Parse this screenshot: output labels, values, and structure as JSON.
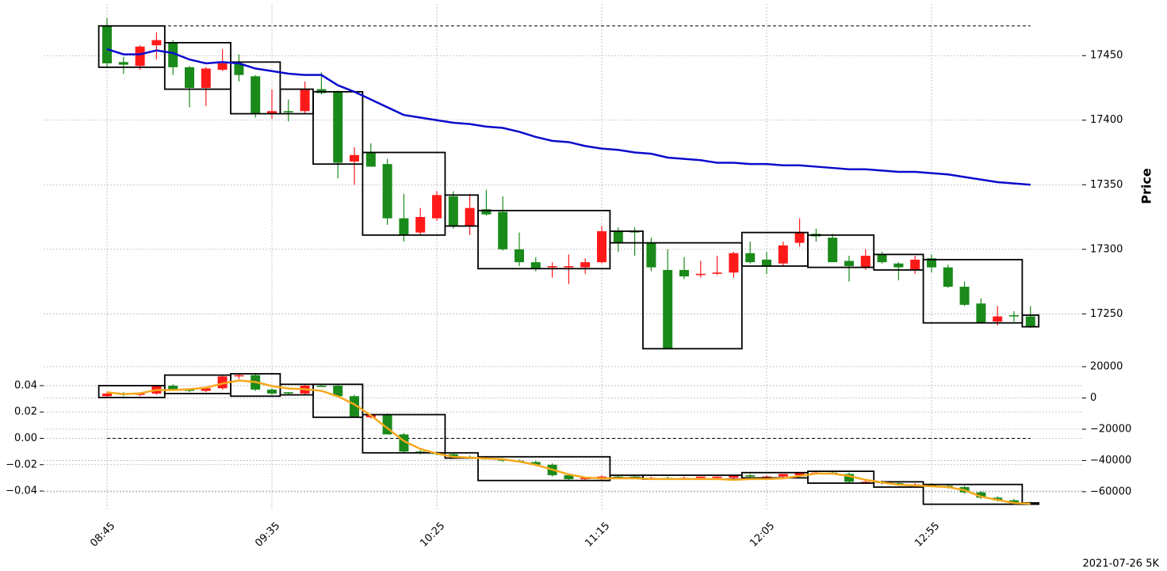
{
  "chart_data": [
    {
      "type": "candlestick",
      "ylabel": "Price",
      "grid": true,
      "up_color": "#ff1a1a",
      "down_color": "#1a8a1a",
      "ylim": [
        17214,
        17490
      ],
      "yticks": [
        17250,
        17300,
        17350,
        17400,
        17450
      ],
      "hline": 17473,
      "open": [
        17473,
        17445,
        17442,
        17458,
        17460,
        17441,
        17425,
        17439,
        17444,
        17434,
        17405,
        17407,
        17407,
        17424,
        17422,
        17368,
        17375,
        17366,
        17324,
        17313,
        17324,
        17341,
        17318,
        17331,
        17329,
        17300,
        17290,
        17286,
        17286,
        17286,
        17290,
        17314,
        17314,
        17305,
        17284,
        17284,
        17280,
        17281,
        17282,
        17297,
        17292,
        17289,
        17305,
        17312,
        17309,
        17291,
        17286,
        17296,
        17289,
        17284,
        17293,
        17286,
        17271,
        17258,
        17244,
        17249,
        17248
      ],
      "high": [
        17479,
        17449,
        17458,
        17468,
        17462,
        17442,
        17441,
        17455,
        17451,
        17435,
        17424,
        17416,
        17430,
        17437,
        17423,
        17379,
        17382,
        17370,
        17343,
        17332,
        17345,
        17345,
        17343,
        17346,
        17341,
        17313,
        17294,
        17290,
        17296,
        17293,
        17318,
        17317,
        17317,
        17309,
        17300,
        17294,
        17291,
        17295,
        17298,
        17306,
        17298,
        17306,
        17324,
        17316,
        17312,
        17295,
        17300,
        17298,
        17290,
        17295,
        17296,
        17288,
        17275,
        17262,
        17256,
        17252,
        17256
      ],
      "low": [
        17441,
        17436,
        17439,
        17447,
        17435,
        17410,
        17411,
        17438,
        17430,
        17402,
        17401,
        17399,
        17405,
        17420,
        17355,
        17350,
        17364,
        17319,
        17306,
        17311,
        17322,
        17316,
        17311,
        17326,
        17299,
        17287,
        17283,
        17278,
        17273,
        17281,
        17289,
        17298,
        17295,
        17283,
        17223,
        17277,
        17278,
        17280,
        17278,
        17289,
        17281,
        17287,
        17302,
        17306,
        17290,
        17275,
        17284,
        17289,
        17276,
        17281,
        17282,
        17270,
        17256,
        17243,
        17241,
        17244,
        17239
      ],
      "close": [
        17444,
        17443,
        17457,
        17462,
        17441,
        17425,
        17440,
        17444,
        17435,
        17405,
        17407,
        17406,
        17424,
        17421,
        17367,
        17373,
        17364,
        17324,
        17311,
        17325,
        17342,
        17318,
        17332,
        17327,
        17300,
        17290,
        17285,
        17287,
        17287,
        17290,
        17314,
        17305,
        17313,
        17286,
        17223,
        17279,
        17281,
        17282,
        17297,
        17290,
        17287,
        17303,
        17313,
        17310,
        17290,
        17287,
        17295,
        17290,
        17286,
        17292,
        17286,
        17271,
        17257,
        17243,
        17248,
        17248,
        17240
      ],
      "overlay": {
        "color": "#0a0acc",
        "values": [
          17455,
          17451,
          17451,
          17454,
          17452,
          17447,
          17444,
          17445,
          17444,
          17440,
          17438,
          17436,
          17435,
          17435,
          17427,
          17422,
          17416,
          17410,
          17404,
          17402,
          17400,
          17398,
          17397,
          17395,
          17394,
          17391,
          17387,
          17384,
          17383,
          17380,
          17378,
          17377,
          17375,
          17374,
          17371,
          17370,
          17369,
          17367,
          17367,
          17366,
          17366,
          17365,
          17365,
          17364,
          17363,
          17362,
          17362,
          17361,
          17360,
          17360,
          17359,
          17358,
          17356,
          17354,
          17352,
          17351,
          17350
        ]
      },
      "boxes": [
        {
          "from": 0,
          "to": 3,
          "low": 17441,
          "high": 17473
        },
        {
          "from": 4,
          "to": 7,
          "low": 17424,
          "high": 17460
        },
        {
          "from": 8,
          "to": 10,
          "low": 17405,
          "high": 17445
        },
        {
          "from": 11,
          "to": 12,
          "low": 17405,
          "high": 17424
        },
        {
          "from": 13,
          "to": 15,
          "low": 17366,
          "high": 17422
        },
        {
          "from": 16,
          "to": 20,
          "low": 17311,
          "high": 17375
        },
        {
          "from": 21,
          "to": 22,
          "low": 17318,
          "high": 17342
        },
        {
          "from": 23,
          "to": 30,
          "low": 17285,
          "high": 17330
        },
        {
          "from": 31,
          "to": 32,
          "low": 17305,
          "high": 17314
        },
        {
          "from": 33,
          "to": 38,
          "low": 17223,
          "high": 17305
        },
        {
          "from": 39,
          "to": 42,
          "low": 17287,
          "high": 17313
        },
        {
          "from": 43,
          "to": 46,
          "low": 17286,
          "high": 17311
        },
        {
          "from": 47,
          "to": 49,
          "low": 17284,
          "high": 17296
        },
        {
          "from": 50,
          "to": 55,
          "low": 17243,
          "high": 17292
        },
        {
          "from": 56,
          "to": 56,
          "low": 17240,
          "high": 17249
        }
      ]
    },
    {
      "type": "candlestick",
      "grid": true,
      "up_color": "#ff1a1a",
      "down_color": "#1a8a1a",
      "xlabel": "2021-07-26 5K",
      "categories": [
        "08:45",
        null,
        null,
        null,
        null,
        null,
        null,
        null,
        null,
        null,
        "09:35",
        null,
        null,
        null,
        null,
        null,
        null,
        null,
        null,
        null,
        "10:25",
        null,
        null,
        null,
        null,
        null,
        null,
        null,
        null,
        null,
        "11:15",
        null,
        null,
        null,
        null,
        null,
        null,
        null,
        null,
        null,
        "12:05",
        null,
        null,
        null,
        null,
        null,
        null,
        null,
        null,
        null,
        "12:55",
        null,
        null,
        null,
        null,
        null,
        null
      ],
      "ylim": [
        -0.055,
        0.0592
      ],
      "yticks": [
        {
          "value": -0.04,
          "label": "−0.04"
        },
        {
          "value": -0.02,
          "label": "−0.02"
        },
        {
          "value": 0,
          "label": "0.00"
        },
        0.02,
        0.04
      ],
      "y2lim": [
        -72200,
        24070
      ],
      "y2ticks": [
        {
          "value": -60000,
          "label": "−60000"
        },
        {
          "value": -40000,
          "label": "−40000"
        },
        {
          "value": -20000,
          "label": "−20000"
        },
        0,
        20000
      ],
      "hline": 0,
      "open": [
        0.032,
        0.034,
        0.033,
        0.034,
        0.04,
        0.037,
        0.036,
        0.038,
        0.047,
        0.048,
        0.037,
        0.035,
        0.034,
        0.04,
        0.04,
        0.032,
        0.016,
        0.018,
        0.003,
        -0.01,
        -0.011,
        -0.012,
        -0.014,
        -0.015,
        -0.016,
        -0.017,
        -0.018,
        -0.02,
        -0.028,
        -0.031,
        -0.031,
        -0.029,
        -0.029,
        -0.03,
        -0.03,
        -0.03,
        -0.03,
        -0.03,
        -0.03,
        -0.028,
        -0.029,
        -0.029,
        -0.028,
        -0.026,
        -0.026,
        -0.027,
        -0.033,
        -0.033,
        -0.034,
        -0.035,
        -0.035,
        -0.036,
        -0.037,
        -0.041,
        -0.045,
        -0.047,
        -0.049
      ],
      "high": [
        0.035,
        0.035,
        0.034,
        0.04,
        0.041,
        0.038,
        0.038,
        0.048,
        0.049,
        0.049,
        0.038,
        0.035,
        0.041,
        0.041,
        0.041,
        0.033,
        0.018,
        0.019,
        0.004,
        -0.009,
        -0.01,
        -0.011,
        -0.013,
        -0.014,
        -0.015,
        -0.016,
        -0.017,
        -0.019,
        -0.027,
        -0.03,
        -0.028,
        -0.028,
        -0.028,
        -0.029,
        -0.029,
        -0.029,
        -0.029,
        -0.029,
        -0.028,
        -0.027,
        -0.028,
        -0.027,
        -0.026,
        -0.025,
        -0.025,
        -0.026,
        -0.032,
        -0.032,
        -0.033,
        -0.034,
        -0.034,
        -0.035,
        -0.036,
        -0.04,
        -0.044,
        -0.046,
        -0.048
      ],
      "low": [
        0.031,
        0.032,
        0.032,
        0.033,
        0.036,
        0.035,
        0.035,
        0.037,
        0.045,
        0.036,
        0.033,
        0.033,
        0.033,
        0.039,
        0.031,
        0.016,
        0.015,
        0.003,
        -0.011,
        -0.012,
        -0.013,
        -0.015,
        -0.015,
        -0.016,
        -0.018,
        -0.018,
        -0.021,
        -0.029,
        -0.032,
        -0.032,
        -0.032,
        -0.03,
        -0.03,
        -0.031,
        -0.031,
        -0.031,
        -0.031,
        -0.031,
        -0.031,
        -0.03,
        -0.03,
        -0.03,
        -0.029,
        -0.027,
        -0.027,
        -0.034,
        -0.034,
        -0.035,
        -0.036,
        -0.036,
        -0.037,
        -0.038,
        -0.042,
        -0.046,
        -0.048,
        -0.049,
        -0.05
      ],
      "close": [
        0.034,
        0.033,
        0.034,
        0.04,
        0.037,
        0.036,
        0.038,
        0.047,
        0.048,
        0.037,
        0.034,
        0.034,
        0.04,
        0.039,
        0.032,
        0.016,
        0.018,
        0.003,
        -0.01,
        -0.011,
        -0.012,
        -0.014,
        -0.015,
        -0.016,
        -0.017,
        -0.018,
        -0.02,
        -0.028,
        -0.031,
        -0.03,
        -0.029,
        -0.03,
        -0.03,
        -0.03,
        -0.031,
        -0.03,
        -0.029,
        -0.029,
        -0.028,
        -0.029,
        -0.029,
        -0.027,
        -0.026,
        -0.026,
        -0.027,
        -0.033,
        -0.033,
        -0.034,
        -0.035,
        -0.035,
        -0.036,
        -0.037,
        -0.041,
        -0.045,
        -0.047,
        -0.049,
        -0.05
      ],
      "overlay": {
        "color": "#f5a81c",
        "axis": "y2",
        "values": [
          3600,
          2500,
          3000,
          5100,
          5100,
          5600,
          6600,
          9200,
          11200,
          10200,
          7600,
          6100,
          5600,
          4600,
          1000,
          -4100,
          -11200,
          -19300,
          -27500,
          -32600,
          -35600,
          -37700,
          -38200,
          -38700,
          -39200,
          -40700,
          -42800,
          -45800,
          -48900,
          -50900,
          -51400,
          -51400,
          -51400,
          -51900,
          -51900,
          -51900,
          -51900,
          -51900,
          -52400,
          -51900,
          -51900,
          -51400,
          -49900,
          -48400,
          -48400,
          -49900,
          -52400,
          -54000,
          -55500,
          -56000,
          -56500,
          -57000,
          -59000,
          -63100,
          -65200,
          -67200,
          -67700
        ]
      },
      "boxes": [
        {
          "from": 0,
          "to": 3,
          "low": 0.031,
          "high": 0.04
        },
        {
          "from": 4,
          "to": 7,
          "low": 0.034,
          "high": 0.048
        },
        {
          "from": 8,
          "to": 10,
          "low": 0.032,
          "high": 0.049
        },
        {
          "from": 11,
          "to": 12,
          "low": 0.033,
          "high": 0.041
        },
        {
          "from": 13,
          "to": 15,
          "low": 0.016,
          "high": 0.041
        },
        {
          "from": 16,
          "to": 20,
          "low": -0.011,
          "high": 0.018
        },
        {
          "from": 21,
          "to": 22,
          "low": -0.015,
          "high": -0.011
        },
        {
          "from": 23,
          "to": 30,
          "low": -0.032,
          "high": -0.014
        },
        {
          "from": 31,
          "to": 32,
          "low": -0.03,
          "high": -0.028
        },
        {
          "from": 33,
          "to": 38,
          "low": -0.031,
          "high": -0.028
        },
        {
          "from": 39,
          "to": 42,
          "low": -0.03,
          "high": -0.026
        },
        {
          "from": 43,
          "to": 46,
          "low": -0.034,
          "high": -0.025
        },
        {
          "from": 47,
          "to": 49,
          "low": -0.037,
          "high": -0.033
        },
        {
          "from": 50,
          "to": 55,
          "low": -0.05,
          "high": -0.035
        },
        {
          "from": 56,
          "to": 56,
          "low": -0.05,
          "high": -0.049
        }
      ]
    }
  ]
}
